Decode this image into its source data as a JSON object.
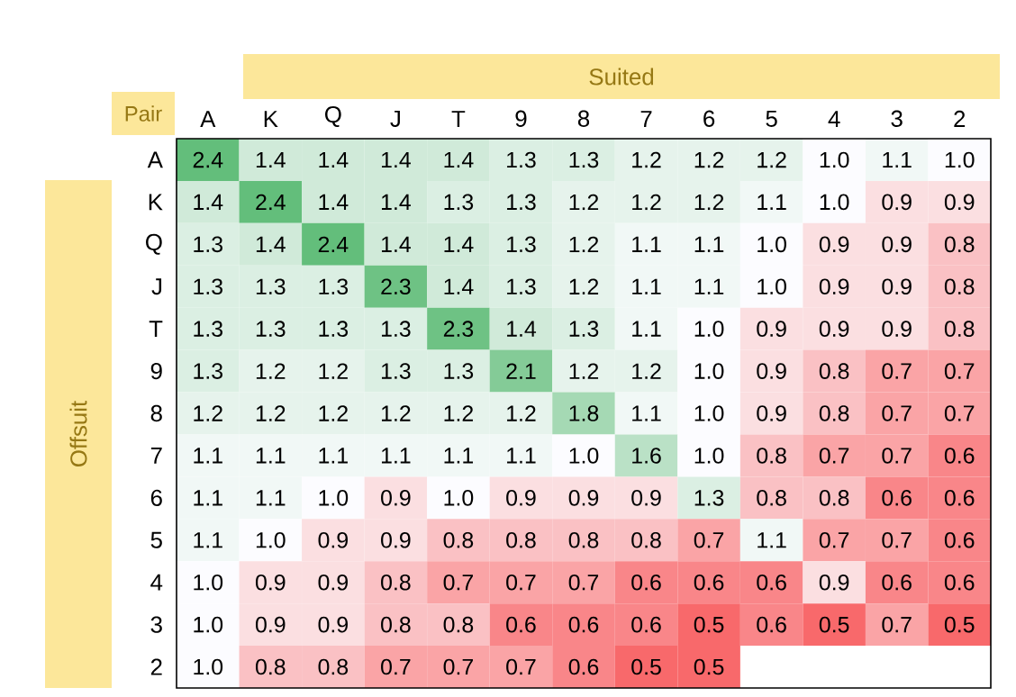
{
  "chart_data": {
    "type": "heatmap",
    "xlabel": "Suited",
    "ylabel": "Offsuit",
    "annotations": [
      "Pair"
    ],
    "categories": [
      "A",
      "K",
      "Q",
      "J",
      "T",
      "9",
      "8",
      "7",
      "6",
      "5",
      "4",
      "3",
      "2"
    ],
    "y_categories": [
      "A",
      "K",
      "Q",
      "J",
      "T",
      "9",
      "8",
      "7",
      "6",
      "5",
      "4",
      "3",
      "2"
    ],
    "cells": [
      [
        2.4,
        1.4,
        1.4,
        1.4,
        1.4,
        1.3,
        1.3,
        1.2,
        1.2,
        1.2,
        1.0,
        1.1,
        1.0
      ],
      [
        1.4,
        2.4,
        1.4,
        1.4,
        1.3,
        1.3,
        1.2,
        1.2,
        1.2,
        1.1,
        1.0,
        0.9,
        0.9
      ],
      [
        1.3,
        1.4,
        2.4,
        1.4,
        1.4,
        1.3,
        1.2,
        1.1,
        1.1,
        1.0,
        0.9,
        0.9,
        0.8
      ],
      [
        1.3,
        1.3,
        1.3,
        2.3,
        1.4,
        1.3,
        1.2,
        1.1,
        1.1,
        1.0,
        0.9,
        0.9,
        0.8
      ],
      [
        1.3,
        1.3,
        1.3,
        1.3,
        2.3,
        1.4,
        1.3,
        1.1,
        1.0,
        0.9,
        0.9,
        0.9,
        0.8
      ],
      [
        1.3,
        1.2,
        1.2,
        1.3,
        1.3,
        2.1,
        1.2,
        1.2,
        1.0,
        0.9,
        0.8,
        0.7,
        0.7
      ],
      [
        1.2,
        1.2,
        1.2,
        1.2,
        1.2,
        1.2,
        1.8,
        1.1,
        1.0,
        0.9,
        0.8,
        0.7,
        0.7
      ],
      [
        1.1,
        1.1,
        1.1,
        1.1,
        1.1,
        1.1,
        1.0,
        1.6,
        1.0,
        0.8,
        0.7,
        0.7,
        0.6
      ],
      [
        1.1,
        1.1,
        1.0,
        0.9,
        1.0,
        0.9,
        0.9,
        0.9,
        1.3,
        0.8,
        0.8,
        0.6,
        0.6
      ],
      [
        1.1,
        1.0,
        0.9,
        0.9,
        0.8,
        0.8,
        0.8,
        0.8,
        0.7,
        1.1,
        0.7,
        0.7,
        0.6
      ],
      [
        1.0,
        0.9,
        0.9,
        0.8,
        0.7,
        0.7,
        0.7,
        0.6,
        0.6,
        0.6,
        0.9,
        0.6,
        0.6
      ],
      [
        1.0,
        0.9,
        0.9,
        0.8,
        0.8,
        0.6,
        0.6,
        0.6,
        0.5,
        0.6,
        0.5,
        0.7,
        0.5
      ],
      [
        1.0,
        0.8,
        0.8,
        0.7,
        0.7,
        0.7,
        0.6,
        0.5,
        0.5,
        null,
        null,
        null,
        null
      ]
    ],
    "cell_labels": [
      [
        "2.4",
        "1.4",
        "1.4",
        "1.4",
        "1.4",
        "1.3",
        "1.3",
        "1.2",
        "1.2",
        "1.2",
        "1.0",
        "1.1",
        "1.0"
      ],
      [
        "1.4",
        "2.4",
        "1.4",
        "1.4",
        "1.3",
        "1.3",
        "1.2",
        "1.2",
        "1.2",
        "1.1",
        "1.0",
        "0.9",
        "0.9"
      ],
      [
        "1.3",
        "1.4",
        "2.4",
        "1.4",
        "1.4",
        "1.3",
        "1.2",
        "1.1",
        "1.1",
        "1.0",
        "0.9",
        "0.9",
        "0.8"
      ],
      [
        "1.3",
        "1.3",
        "1.3",
        "2.3",
        "1.4",
        "1.3",
        "1.2",
        "1.1",
        "1.1",
        "1.0",
        "0.9",
        "0.9",
        "0.8"
      ],
      [
        "1.3",
        "1.3",
        "1.3",
        "1.3",
        "2.3",
        "1.4",
        "1.3",
        "1.1",
        "1.0",
        "0.9",
        "0.9",
        "0.9",
        "0.8"
      ],
      [
        "1.3",
        "1.2",
        "1.2",
        "1.3",
        "1.3",
        "2.1",
        "1.2",
        "1.2",
        "1.0",
        "0.9",
        "0.8",
        "0.7",
        "0.7"
      ],
      [
        "1.2",
        "1.2",
        "1.2",
        "1.2",
        "1.2",
        "1.2",
        "1.8",
        "1.1",
        "1.0",
        "0.9",
        "0.8",
        "0.7",
        "0.7"
      ],
      [
        "1.1",
        "1.1",
        "1.1",
        "1.1",
        "1.1",
        "1.1",
        "1.0",
        "1.6",
        "1.0",
        "0.8",
        "0.7",
        "0.7",
        "0.6"
      ],
      [
        "1.1",
        "1.1",
        "1.0",
        "0.9",
        "1.0",
        "0.9",
        "0.9",
        "0.9",
        "1.3",
        "0.8",
        "0.8",
        "0.6",
        "0.6"
      ],
      [
        "1.1",
        "1.0",
        "0.9",
        "0.9",
        "0.8",
        "0.8",
        "0.8",
        "0.8",
        "0.7",
        "1.1",
        "0.7",
        "0.7",
        "0.6"
      ],
      [
        "1.0",
        "0.9",
        "0.9",
        "0.8",
        "0.7",
        "0.7",
        "0.7",
        "0.6",
        "0.6",
        "0.6",
        "0.9",
        "0.6",
        "0.6"
      ],
      [
        "1.0",
        "0.9",
        "0.9",
        "0.8",
        "0.8",
        "0.6",
        "0.6",
        "0.6",
        "0.5",
        "0.6",
        "0.5",
        "0.7",
        "0.5"
      ],
      [
        "1.0",
        "0.8",
        "0.8",
        "0.7",
        "0.7",
        "0.7",
        "0.6",
        "0.5",
        "0.5",
        null,
        null,
        null,
        null
      ]
    ],
    "data_labels": true
  }
}
